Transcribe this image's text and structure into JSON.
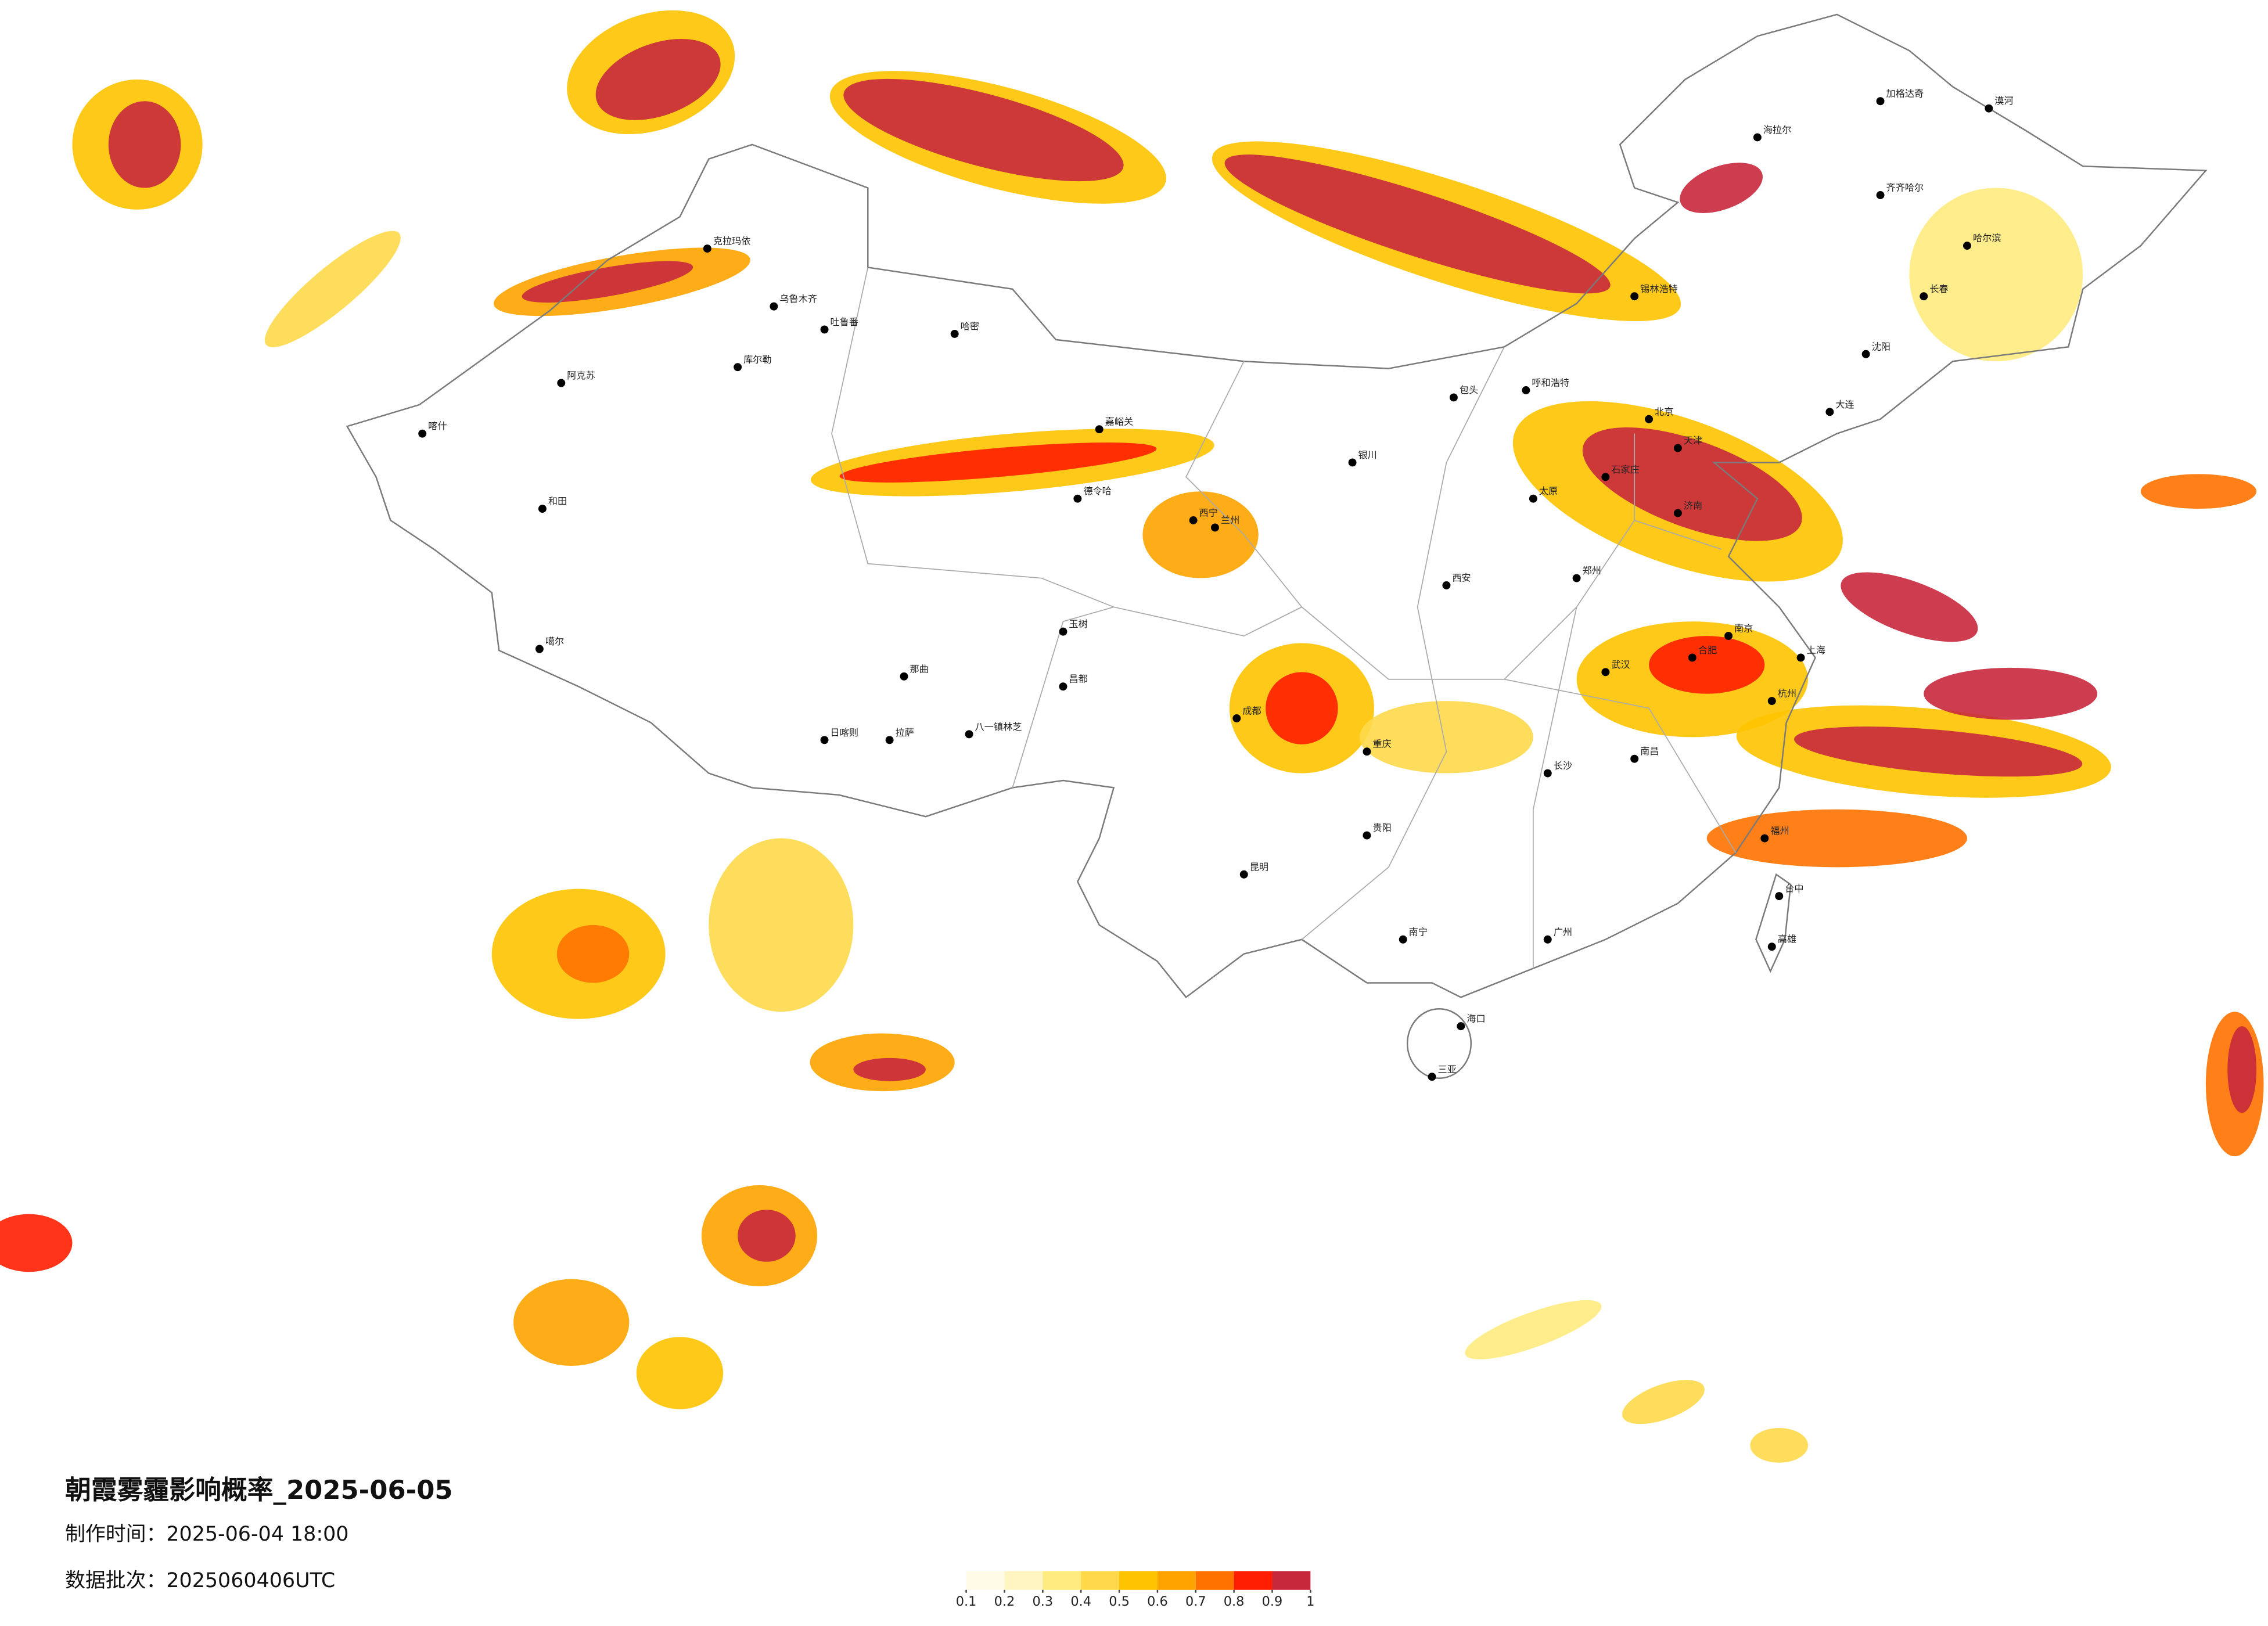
{
  "title": "朝霞雾霾影响概率_2025-06-05",
  "production_time": "制作时间：2025-06-04 18:00",
  "data_batch": "数据批次：2025060406UTC",
  "legend": {
    "ticks": [
      0.1,
      0.2,
      0.3,
      0.4,
      0.5,
      0.6,
      0.7,
      0.8,
      0.9,
      1
    ],
    "colors": [
      "#fffbe6",
      "#fff5c0",
      "#ffeb80",
      "#ffd94a",
      "#ffc300",
      "#ffa300",
      "#ff7200",
      "#ff1e00",
      "#c8283c"
    ]
  },
  "cities": [
    "克拉玛依",
    "乌鲁木齐",
    "吐鲁番",
    "哈密",
    "阿克苏",
    "喀什",
    "和田",
    "库尔勒",
    "嘉峪关",
    "德令哈",
    "玉树",
    "日喀则",
    "拉萨",
    "八一镇林芝",
    "噶尔",
    "那曲",
    "昌都",
    "呼和浩特",
    "包头",
    "北京",
    "天津",
    "石家庄",
    "太原",
    "西安",
    "兰州",
    "西宁",
    "银川",
    "成都",
    "重庆",
    "贵阳",
    "昆明",
    "南宁",
    "广州",
    "长沙",
    "武汉",
    "南京",
    "上海",
    "杭州",
    "福州",
    "台中",
    "高雄",
    "海口",
    "三亚",
    "哈尔滨",
    "长春",
    "沈阳",
    "大连",
    "齐齐哈尔",
    "漠河",
    "海拉尔",
    "加格达奇",
    "锡林浩特",
    "济南",
    "郑州",
    "合肥",
    "南昌"
  ]
}
